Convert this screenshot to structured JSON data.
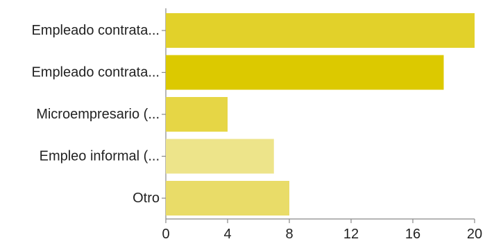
{
  "chart_data": {
    "type": "bar",
    "orientation": "horizontal",
    "categories": [
      "Empleado contrata...",
      "Empleado contrata...",
      "Microempresario (...",
      "Empleo informal (...",
      "Otro"
    ],
    "values": [
      20,
      18,
      4,
      7,
      8
    ],
    "bar_colors": [
      "#e2d12a",
      "#dcc900",
      "#e6d645",
      "#ede48a",
      "#e9dc68"
    ],
    "xlim": [
      0,
      20
    ],
    "x_ticks": [
      "0",
      "4",
      "8",
      "12",
      "16",
      "20"
    ],
    "title": "",
    "xlabel": "",
    "ylabel": "",
    "grid": false,
    "legend": "none"
  }
}
